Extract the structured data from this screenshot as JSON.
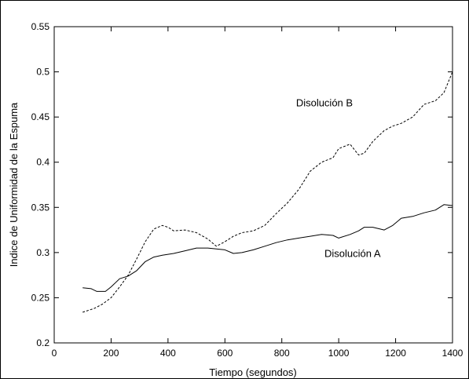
{
  "chart_data": {
    "type": "line",
    "title": "",
    "xlabel": "Tiempo (segundos)",
    "ylabel": "Indice de Uniformidad de la Espuma",
    "xlim": [
      0,
      1400
    ],
    "ylim": [
      0.2,
      0.55
    ],
    "xticks": [
      0,
      200,
      400,
      600,
      800,
      1000,
      1200,
      1400
    ],
    "xtick_labels": [
      "0",
      "200",
      "400",
      "600",
      "800",
      "1000",
      "1200",
      "1400"
    ],
    "yticks": [
      0.2,
      0.25,
      0.3,
      0.35,
      0.4,
      0.45,
      0.5,
      0.55
    ],
    "ytick_labels": [
      "0.2",
      "0.25",
      "0.3",
      "0.35",
      "0.4",
      "0.45",
      "0.5",
      "0.55"
    ],
    "grid": false,
    "legend": "none",
    "series": [
      {
        "name": "Disolución A",
        "style": "solid",
        "color": "#000000",
        "x": [
          100,
          130,
          150,
          180,
          200,
          230,
          260,
          290,
          320,
          350,
          380,
          420,
          460,
          500,
          540,
          570,
          600,
          630,
          660,
          700,
          740,
          780,
          820,
          860,
          900,
          940,
          980,
          1000,
          1040,
          1070,
          1090,
          1120,
          1160,
          1190,
          1220,
          1260,
          1300,
          1340,
          1370,
          1400
        ],
        "y": [
          0.261,
          0.26,
          0.257,
          0.257,
          0.262,
          0.271,
          0.274,
          0.28,
          0.29,
          0.295,
          0.297,
          0.299,
          0.302,
          0.305,
          0.305,
          0.304,
          0.303,
          0.299,
          0.3,
          0.303,
          0.307,
          0.311,
          0.314,
          0.316,
          0.318,
          0.32,
          0.319,
          0.316,
          0.32,
          0.324,
          0.328,
          0.328,
          0.325,
          0.33,
          0.338,
          0.34,
          0.344,
          0.347,
          0.353,
          0.352
        ]
      },
      {
        "name": "Disolución B",
        "style": "dashed",
        "color": "#000000",
        "x": [
          100,
          140,
          170,
          200,
          230,
          260,
          290,
          320,
          350,
          380,
          400,
          420,
          460,
          500,
          540,
          570,
          600,
          630,
          660,
          700,
          740,
          780,
          820,
          860,
          900,
          940,
          980,
          1000,
          1040,
          1070,
          1090,
          1120,
          1160,
          1190,
          1220,
          1260,
          1300,
          1340,
          1370,
          1400
        ],
        "y": [
          0.234,
          0.238,
          0.243,
          0.25,
          0.262,
          0.275,
          0.293,
          0.312,
          0.326,
          0.33,
          0.328,
          0.324,
          0.325,
          0.322,
          0.315,
          0.307,
          0.312,
          0.318,
          0.322,
          0.324,
          0.33,
          0.343,
          0.355,
          0.37,
          0.39,
          0.4,
          0.405,
          0.415,
          0.42,
          0.408,
          0.41,
          0.423,
          0.435,
          0.44,
          0.443,
          0.45,
          0.464,
          0.468,
          0.477,
          0.5
        ]
      }
    ],
    "annotations": [
      {
        "text": "Disolución B",
        "x": 850,
        "y": 0.462
      },
      {
        "text": "Disolución A",
        "x": 950,
        "y": 0.295
      }
    ]
  }
}
